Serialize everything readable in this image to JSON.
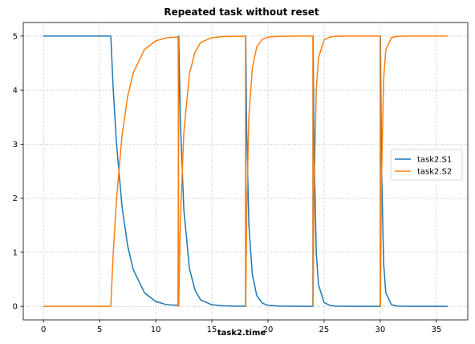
{
  "chart_data": {
    "type": "line",
    "title": "Repeated task without reset",
    "xlabel": "task2.time",
    "ylabel": "",
    "xlim": [
      -1.8,
      37.8
    ],
    "ylim": [
      -0.25,
      5.25
    ],
    "xticks": [
      0,
      5,
      10,
      15,
      20,
      25,
      30,
      35
    ],
    "yticks": [
      0,
      1,
      2,
      3,
      4,
      5
    ],
    "grid": true,
    "legend_position": "right",
    "series": [
      {
        "name": "task2.S1",
        "color": "#1f77b4",
        "x": [
          0,
          6,
          6.2,
          6.5,
          7,
          7.5,
          8,
          9,
          10,
          11,
          12,
          12.05,
          12.2,
          12.5,
          13,
          13.5,
          14,
          15,
          16,
          17,
          18,
          18.02,
          18.1,
          18.3,
          18.6,
          19,
          19.5,
          20,
          21,
          22,
          24,
          24.02,
          24.1,
          24.3,
          24.5,
          25,
          25.5,
          26,
          27,
          28,
          30,
          30.02,
          30.1,
          30.3,
          30.5,
          31,
          31.5,
          32,
          33,
          36
        ],
        "y": [
          5,
          5,
          4.07,
          3.03,
          1.84,
          1.12,
          0.68,
          0.25,
          0.09,
          0.03,
          0.02,
          5,
          3.4,
          1.8,
          0.7,
          0.3,
          0.12,
          0.03,
          0.01,
          0.005,
          0.002,
          5,
          3.3,
          1.5,
          0.6,
          0.2,
          0.06,
          0.02,
          0.005,
          0.002,
          0.001,
          5,
          3.0,
          1.0,
          0.4,
          0.07,
          0.02,
          0.005,
          0.001,
          0.001,
          0.001,
          5,
          2.8,
          0.8,
          0.25,
          0.03,
          0.005,
          0.002,
          0.001,
          0.001
        ]
      },
      {
        "name": "task2.S2",
        "color": "#ff7f0e",
        "x": [
          0,
          6,
          6.2,
          6.5,
          7,
          7.5,
          8,
          9,
          10,
          11,
          12,
          12.05,
          12.2,
          12.5,
          13,
          13.5,
          14,
          15,
          16,
          17,
          18,
          18.02,
          18.1,
          18.3,
          18.6,
          19,
          19.5,
          20,
          21,
          22,
          24,
          24.02,
          24.1,
          24.3,
          24.5,
          25,
          25.5,
          26,
          27,
          28,
          30,
          30.02,
          30.1,
          30.3,
          30.5,
          31,
          31.5,
          32,
          33,
          36
        ],
        "y": [
          0,
          0,
          0.93,
          1.97,
          3.16,
          3.88,
          4.32,
          4.75,
          4.91,
          4.97,
          4.98,
          0,
          1.6,
          3.2,
          4.3,
          4.7,
          4.88,
          4.97,
          4.99,
          4.995,
          4.998,
          0,
          1.7,
          3.5,
          4.4,
          4.8,
          4.94,
          4.98,
          4.995,
          4.998,
          4.999,
          0,
          2.0,
          4.0,
          4.6,
          4.93,
          4.98,
          4.995,
          4.999,
          4.999,
          4.999,
          0,
          2.2,
          4.2,
          4.75,
          4.97,
          4.995,
          4.998,
          4.999,
          4.999
        ]
      }
    ]
  }
}
